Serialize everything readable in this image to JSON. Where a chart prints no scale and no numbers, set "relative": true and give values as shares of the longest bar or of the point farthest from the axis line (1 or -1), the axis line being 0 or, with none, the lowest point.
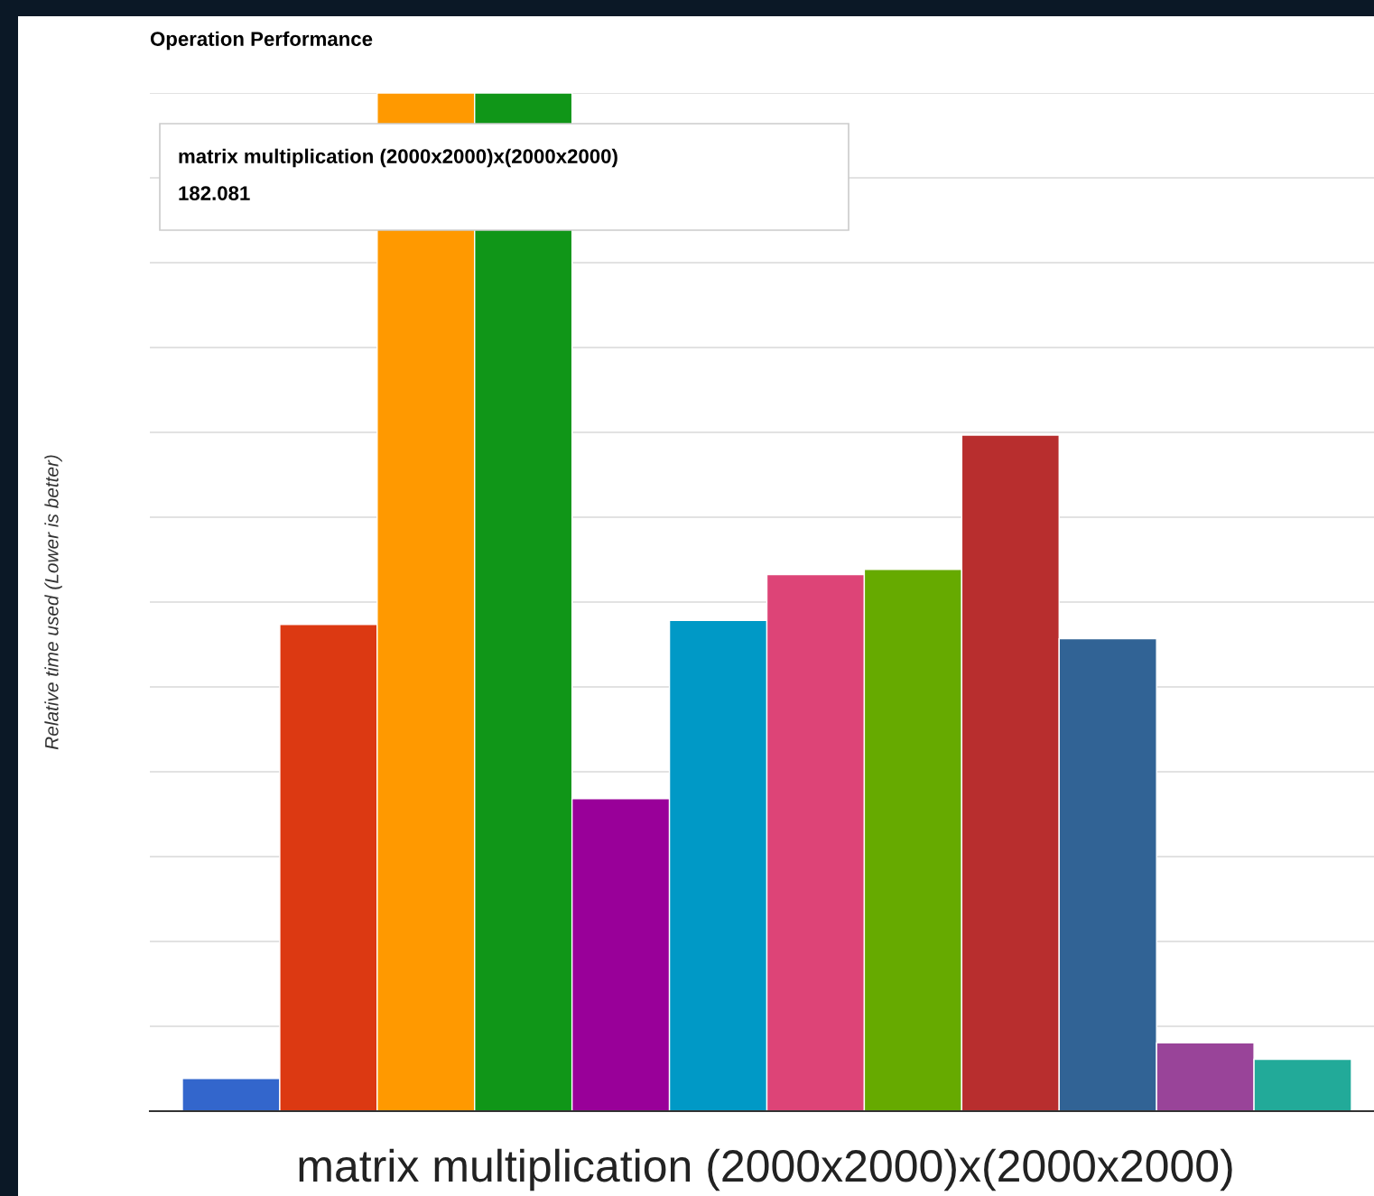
{
  "chart_data": {
    "type": "bar",
    "title": "Operation Performance",
    "xlabel": "matrix multiplication (2000x2000)x(2000x2000)",
    "ylabel": "Relative time used (Lower is better)",
    "categories": [
      null,
      null,
      null,
      null,
      null,
      null,
      null,
      null,
      null,
      null,
      null,
      null
    ],
    "values": [
      0.032,
      0.478,
      1,
      1,
      0.307,
      0.482,
      0.527,
      0.532,
      0.664,
      0.464,
      0.067,
      0.051
    ],
    "colors": [
      "#3366cc",
      "#dc3912",
      "#ff9900",
      "#109618",
      "#990099",
      "#0099c6",
      "#dd4477",
      "#66aa00",
      "#b82e2e",
      "#316395",
      "#994499",
      "#22aa99"
    ],
    "relative": true,
    "grid": "y",
    "annotations": [
      "matrix multiplication (2000x2000)x(2000x2000)",
      "182.081"
    ]
  }
}
